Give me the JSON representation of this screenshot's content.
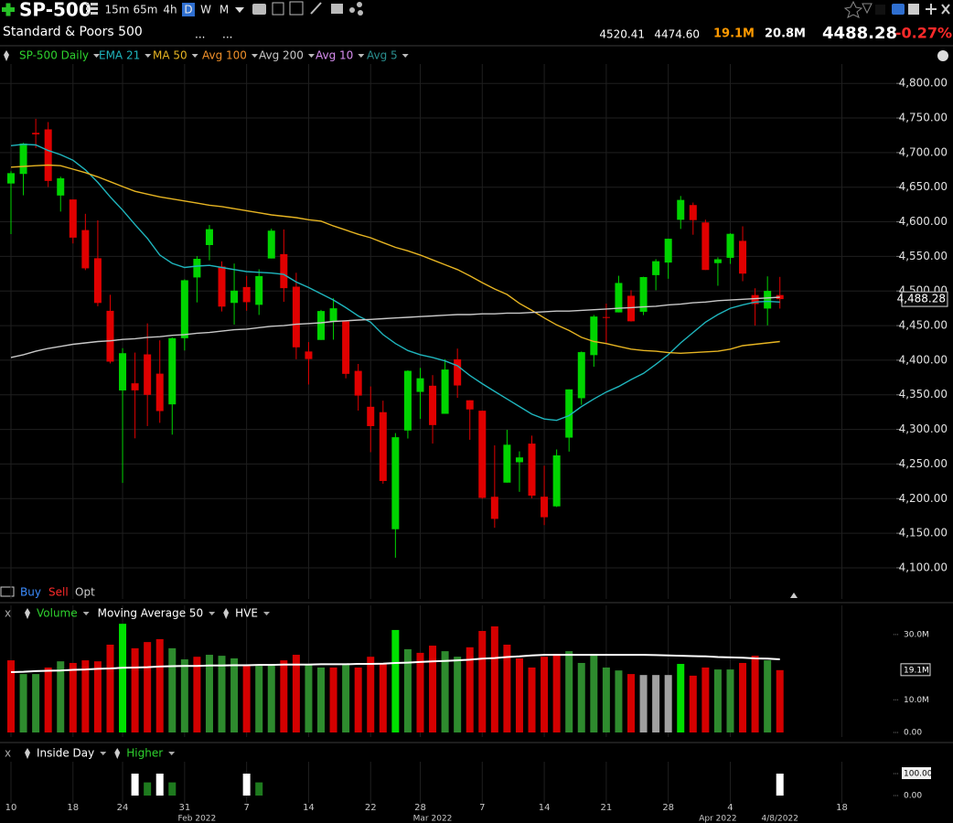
{
  "toolbar": {
    "symbol": "SP-500",
    "intervals": [
      "15m",
      "65m",
      "4h",
      "D",
      "W",
      "M"
    ]
  },
  "header": {
    "name": "Standard & Poors 500",
    "fields": [
      "...",
      "..."
    ],
    "high": "4520.41",
    "low": "4474.60",
    "volume": "19.1M",
    "avg_volume": "20.8M",
    "last": "4488.28",
    "change": "-0.27%"
  },
  "orders": [
    "Buy",
    "Sell",
    "Opt"
  ],
  "chart_data": [
    {
      "type": "candlestick",
      "grid": true,
      "categories": [
        "10",
        null,
        null,
        null,
        null,
        "18",
        null,
        null,
        null,
        "24",
        null,
        null,
        null,
        null,
        "31",
        null,
        null,
        null,
        null,
        "7",
        null,
        null,
        null,
        null,
        "14",
        null,
        null,
        null,
        null,
        "22",
        null,
        null,
        null,
        "28",
        null,
        null,
        null,
        null,
        "7",
        null,
        null,
        null,
        null,
        "14",
        null,
        null,
        null,
        null,
        "21",
        null,
        null,
        null,
        null,
        "28",
        null,
        null,
        null,
        null,
        "4",
        null,
        null,
        null,
        null
      ],
      "sublabels": [
        null,
        null,
        null,
        null,
        null,
        null,
        null,
        null,
        null,
        null,
        null,
        null,
        null,
        null,
        null,
        "Feb 2022",
        null,
        null,
        null,
        null,
        null,
        null,
        null,
        null,
        null,
        null,
        null,
        null,
        null,
        null,
        null,
        null,
        null,
        null,
        "Mar 2022",
        null,
        null,
        null,
        null,
        null,
        null,
        null,
        null,
        null,
        null,
        null,
        null,
        null,
        null,
        null,
        null,
        null,
        null,
        null,
        null,
        null,
        null,
        "Apr 2022",
        null,
        null,
        null,
        null,
        "4/8/2022"
      ],
      "future_labels": [
        "18"
      ],
      "up_color": "#00d400",
      "down_color": "#e00000",
      "open": [
        4655.34,
        4669.14,
        4728.59,
        4733.56,
        4637.99,
        4632.24,
        4588.03,
        4547.35,
        4471.38,
        4356.32,
        4366.64,
        4408.43,
        4380.58,
        4336.19,
        4431.79,
        4519.57,
        4566.39,
        4535.41,
        4482.79,
        4505.75,
        4480.02,
        4547.0,
        4553.24,
        4506.27,
        4412.61,
        4429.28,
        4455.75,
        4456.06,
        4384.57,
        4332.74,
        4324.93,
        4155.77,
        4298.38,
        4354.17,
        4363.14,
        4322.56,
        4401.31,
        4342.12,
        4327.01,
        4202.66,
        4223.1,
        4252.55,
        4279.5,
        4202.75,
        4188.82,
        4288.14,
        4345.11,
        4407.34,
        4462.4,
        4469.1,
        4493.1,
        4469.98,
        4522.91,
        4541.09,
        4602.86,
        4624.2,
        4599.02,
        4540.32,
        4547.97,
        4572.45,
        4494.17,
        4474.65,
        4494.15
      ],
      "high": [
        4673.02,
        4714.13,
        4748.83,
        4744.13,
        4665.13,
        4632.24,
        4611.55,
        4602.11,
        4494.52,
        4417.35,
        4411.01,
        4453.23,
        4428.74,
        4432.72,
        4516.89,
        4550.49,
        4595.31,
        4542.88,
        4539.66,
        4521.86,
        4531.32,
        4590.03,
        4588.92,
        4526.33,
        4426.22,
        4472.77,
        4489.55,
        4456.06,
        4394.6,
        4362.12,
        4341.51,
        4294.73,
        4385.34,
        4388.84,
        4378.45,
        4401.48,
        4416.78,
        4342.12,
        4327.01,
        4276.94,
        4299.4,
        4268.28,
        4291.01,
        4247.57,
        4271.05,
        4357.86,
        4412.67,
        4465.4,
        4481.75,
        4522.0,
        4501.07,
        4520.58,
        4546.03,
        4575.65,
        4637.3,
        4627.77,
        4603.07,
        4548.7,
        4583.5,
        4593.45,
        4503.94,
        4521.16,
        4520.41
      ],
      "low": [
        4582.24,
        4638.27,
        4706.71,
        4650.29,
        4614.75,
        4568.7,
        4530.2,
        4477.95,
        4395.34,
        4222.62,
        4287.11,
        4304.8,
        4309.5,
        4292.46,
        4414.02,
        4483.53,
        4544.32,
        4470.39,
        4451.5,
        4471.47,
        4465.4,
        4547.0,
        4484.31,
        4401.41,
        4364.84,
        4429.28,
        4429.68,
        4373.81,
        4327.22,
        4267.11,
        4221.51,
        4114.65,
        4286.83,
        4315.12,
        4279.54,
        4322.56,
        4345.56,
        4284.98,
        4199.85,
        4157.87,
        4223.1,
        4209.8,
        4200.49,
        4161.72,
        4187.9,
        4267.92,
        4335.65,
        4390.57,
        4424.3,
        4469.1,
        4455.81,
        4465.17,
        4501.07,
        4517.69,
        4589.66,
        4581.32,
        4530.41,
        4507.57,
        4539.21,
        4514.17,
        4450.04,
        4450.3,
        4474.6
      ],
      "close": [
        4670.29,
        4713.07,
        4726.35,
        4659.03,
        4662.85,
        4577.11,
        4532.76,
        4482.73,
        4397.94,
        4410.13,
        4356.45,
        4349.93,
        4326.51,
        4431.85,
        4515.55,
        4546.54,
        4589.38,
        4477.44,
        4500.53,
        4483.87,
        4521.54,
        4587.18,
        4504.08,
        4418.64,
        4401.67,
        4471.07,
        4475.01,
        4380.26,
        4348.87,
        4304.76,
        4225.5,
        4288.7,
        4384.65,
        4373.94,
        4306.26,
        4386.54,
        4363.49,
        4328.87,
        4201.09,
        4170.7,
        4277.88,
        4259.52,
        4204.31,
        4173.11,
        4262.45,
        4357.86,
        4411.67,
        4463.12,
        4461.18,
        4511.61,
        4456.24,
        4520.16,
        4543.06,
        4575.52,
        4631.6,
        4602.45,
        4530.41,
        4545.86,
        4582.64,
        4525.12,
        4481.15,
        4500.21,
        4488.28
      ],
      "series": [
        {
          "name": "SP-500 Daily",
          "color": "#2ed12e"
        },
        {
          "name": "EMA 21",
          "color": "#1fb5bd",
          "values": [
            4710,
            4712,
            4711,
            4703,
            4697,
            4689,
            4675,
            4657,
            4636,
            4617,
            4596,
            4576,
            4552,
            4540,
            4534,
            4536,
            4537,
            4534,
            4531,
            4528,
            4527,
            4526,
            4524,
            4513,
            4505,
            4496,
            4487,
            4476,
            4464,
            4455,
            4437,
            4424,
            4414,
            4408,
            4404,
            4399,
            4392,
            4378,
            4366,
            4355,
            4344,
            4333,
            4322,
            4315,
            4313,
            4320,
            4333,
            4344,
            4354,
            4362,
            4372,
            4381,
            4394,
            4408,
            4425,
            4440,
            4455,
            4466,
            4475,
            4480,
            4484,
            4485,
            4484
          ]
        },
        {
          "name": "MA 50",
          "color": "#e6b422",
          "values": [
            4679,
            4680,
            4681,
            4682,
            4681,
            4676,
            4671,
            4665,
            4658,
            4651,
            4644,
            4640,
            4636,
            4633,
            4630,
            4627,
            4624,
            4622,
            4619,
            4616,
            4613,
            4610,
            4608,
            4606,
            4603,
            4601,
            4594,
            4588,
            4582,
            4577,
            4570,
            4563,
            4558,
            4552,
            4545,
            4538,
            4531,
            4522,
            4512,
            4503,
            4495,
            4482,
            4472,
            4461,
            4451,
            4443,
            4433,
            4427,
            4424,
            4420,
            4416,
            4414,
            4413,
            4411,
            4410,
            4411,
            4412,
            4413,
            4416,
            4421,
            4423,
            4425,
            4427
          ]
        },
        {
          "name": "Avg 100",
          "color": "#f0902a"
        },
        {
          "name": "Avg 200",
          "color": "#c8c8c8",
          "values": [
            4404,
            4408,
            4413,
            4417,
            4420,
            4423,
            4425,
            4427,
            4428,
            4430,
            4431,
            4433,
            4434,
            4436,
            4437,
            4439,
            4440,
            4442,
            4444,
            4445,
            4447,
            4449,
            4450,
            4452,
            4453,
            4454,
            4456,
            4457,
            4458,
            4459,
            4460,
            4461,
            4462,
            4463,
            4464,
            4465,
            4466,
            4466,
            4467,
            4467,
            4468,
            4468,
            4469,
            4470,
            4471,
            4471,
            4472,
            4473,
            4474,
            4475,
            4476,
            4477,
            4478,
            4480,
            4481,
            4483,
            4484,
            4486,
            4487,
            4488,
            4489,
            4490,
            4491
          ]
        },
        {
          "name": "Avg 10",
          "color": "#d88ef0"
        },
        {
          "name": "Avg 5",
          "color": "#2a8f8f"
        }
      ],
      "ylim": [
        4055,
        4828
      ],
      "yticks": [
        {
          "value": 4100,
          "label": "4,100.00"
        },
        {
          "value": 4150,
          "label": "4,150.00"
        },
        {
          "value": 4200,
          "label": "4,200.00"
        },
        {
          "value": 4250,
          "label": "4,250.00"
        },
        {
          "value": 4300,
          "label": "4,300.00"
        },
        {
          "value": 4350,
          "label": "4,350.00"
        },
        {
          "value": 4400,
          "label": "4,400.00"
        },
        {
          "value": 4450,
          "label": "4,450.00"
        },
        {
          "value": 4500,
          "label": "4,500.00"
        },
        {
          "value": 4550,
          "label": "4,550.00"
        },
        {
          "value": 4600,
          "label": "4,600.00"
        },
        {
          "value": 4650,
          "label": "4,650.00"
        },
        {
          "value": 4700,
          "label": "4,700.00"
        },
        {
          "value": 4750,
          "label": "4,750.00"
        },
        {
          "value": 4800,
          "label": "4,800.00"
        }
      ],
      "last_label": {
        "value": 4488.28,
        "label": "4,488.28"
      }
    },
    {
      "type": "bar",
      "close_label": "x",
      "series": [
        {
          "name": "Volume",
          "color": "#2ed12e",
          "colors": [
            "#d40000",
            "#2e8b2e",
            "#2e8b2e",
            "#d40000",
            "#2e8b2e",
            "#d40000",
            "#d40000",
            "#d40000",
            "#d40000",
            "#00e000",
            "#d40000",
            "#d40000",
            "#d40000",
            "#2e8b2e",
            "#2e8b2e",
            "#d40000",
            "#2e8b2e",
            "#2e8b2e",
            "#2e8b2e",
            "#d40000",
            "#2e8b2e",
            "#2e8b2e",
            "#d40000",
            "#d40000",
            "#2e8b2e",
            "#2e8b2e",
            "#d40000",
            "#2e8b2e",
            "#d40000",
            "#d40000",
            "#d40000",
            "#00e000",
            "#2e8b2e",
            "#d40000",
            "#d40000",
            "#2e8b2e",
            "#2e8b2e",
            "#d40000",
            "#d40000",
            "#d40000",
            "#d40000",
            "#d40000",
            "#d40000",
            "#d40000",
            "#d40000",
            "#2e8b2e",
            "#2e8b2e",
            "#2e8b2e",
            "#2e8b2e",
            "#2e8b2e",
            "#d40000",
            "#a0a0a0",
            "#a0a0a0",
            "#a0a0a0",
            "#00e000",
            "#d40000",
            "#d40000",
            "#2e8b2e",
            "#2e8b2e",
            "#d40000",
            "#d40000",
            "#2e8b2e",
            "#d40000"
          ],
          "values": [
            22.1,
            17.9,
            17.9,
            19.9,
            21.8,
            21.3,
            22.1,
            21.8,
            26.9,
            33.3,
            25.8,
            27.7,
            28.6,
            25.8,
            22.4,
            23.2,
            23.8,
            23.5,
            22.7,
            20.4,
            20.4,
            20.7,
            22.1,
            23.8,
            20.7,
            19.9,
            19.9,
            20.7,
            19.9,
            23.2,
            21.0,
            31.4,
            25.5,
            24.4,
            26.6,
            24.9,
            23.2,
            26.1,
            31.1,
            32.5,
            26.9,
            22.7,
            19.9,
            23.2,
            24.1,
            24.9,
            21.3,
            24.1,
            19.9,
            19.0,
            17.9,
            17.6,
            17.6,
            17.6,
            21.0,
            17.4,
            19.9,
            19.3,
            19.3,
            21.3,
            23.5,
            22.1,
            19.1
          ]
        },
        {
          "name": "Moving Average 50",
          "color": "#ffffff",
          "values": [
            18.5,
            18.6,
            18.8,
            18.9,
            19.0,
            19.2,
            19.3,
            19.5,
            19.6,
            19.8,
            19.9,
            20.0,
            20.2,
            20.3,
            20.4,
            20.4,
            20.5,
            20.5,
            20.6,
            20.6,
            20.7,
            20.7,
            20.8,
            20.8,
            20.8,
            20.9,
            20.9,
            20.9,
            21.0,
            21.0,
            21.1,
            21.3,
            21.4,
            21.6,
            21.8,
            21.9,
            22.1,
            22.3,
            22.6,
            22.8,
            23.1,
            23.3,
            23.6,
            23.8,
            23.8,
            23.8,
            23.8,
            23.8,
            23.8,
            23.8,
            23.8,
            23.8,
            23.7,
            23.6,
            23.5,
            23.4,
            23.3,
            23.1,
            23.0,
            22.9,
            22.7,
            22.6,
            22.4
          ]
        },
        {
          "name": "HVE",
          "color": "#ffffff"
        }
      ],
      "ylim": [
        0,
        33.9
      ],
      "yticks": [
        {
          "value": 0,
          "label": "0.00"
        },
        {
          "value": 10,
          "label": "10.0M"
        },
        {
          "value": 30,
          "label": "30.0M"
        }
      ],
      "last_label": {
        "value": 19.1,
        "label": "19.1M"
      }
    },
    {
      "type": "bar",
      "close_label": "x",
      "series": [
        {
          "name": "Inside Day",
          "color": "#ffffff",
          "values": [
            0,
            0,
            0,
            0,
            0,
            0,
            0,
            0,
            0,
            0,
            100,
            0,
            100,
            0,
            0,
            0,
            0,
            0,
            0,
            100,
            0,
            0,
            0,
            0,
            0,
            0,
            0,
            0,
            0,
            0,
            0,
            0,
            0,
            0,
            0,
            0,
            0,
            0,
            0,
            0,
            0,
            0,
            0,
            0,
            0,
            0,
            0,
            0,
            0,
            0,
            0,
            0,
            0,
            0,
            0,
            0,
            0,
            0,
            0,
            0,
            0,
            0,
            100
          ]
        },
        {
          "name": "Higher",
          "color": "#1e7a1e",
          "values": [
            0,
            0,
            0,
            0,
            0,
            0,
            0,
            0,
            0,
            0,
            0,
            60,
            0,
            60,
            0,
            0,
            0,
            0,
            0,
            0,
            60,
            0,
            0,
            0,
            0,
            0,
            0,
            0,
            0,
            0,
            0,
            0,
            0,
            0,
            0,
            0,
            0,
            0,
            0,
            0,
            0,
            0,
            0,
            0,
            0,
            0,
            0,
            0,
            0,
            0,
            0,
            0,
            0,
            0,
            0,
            0,
            0,
            0,
            0,
            0,
            0,
            0,
            0
          ]
        }
      ],
      "ylim": [
        0,
        100
      ],
      "yticks": [
        {
          "value": 0,
          "label": "0.00"
        },
        {
          "value": 100,
          "label": "100.00"
        }
      ]
    }
  ]
}
